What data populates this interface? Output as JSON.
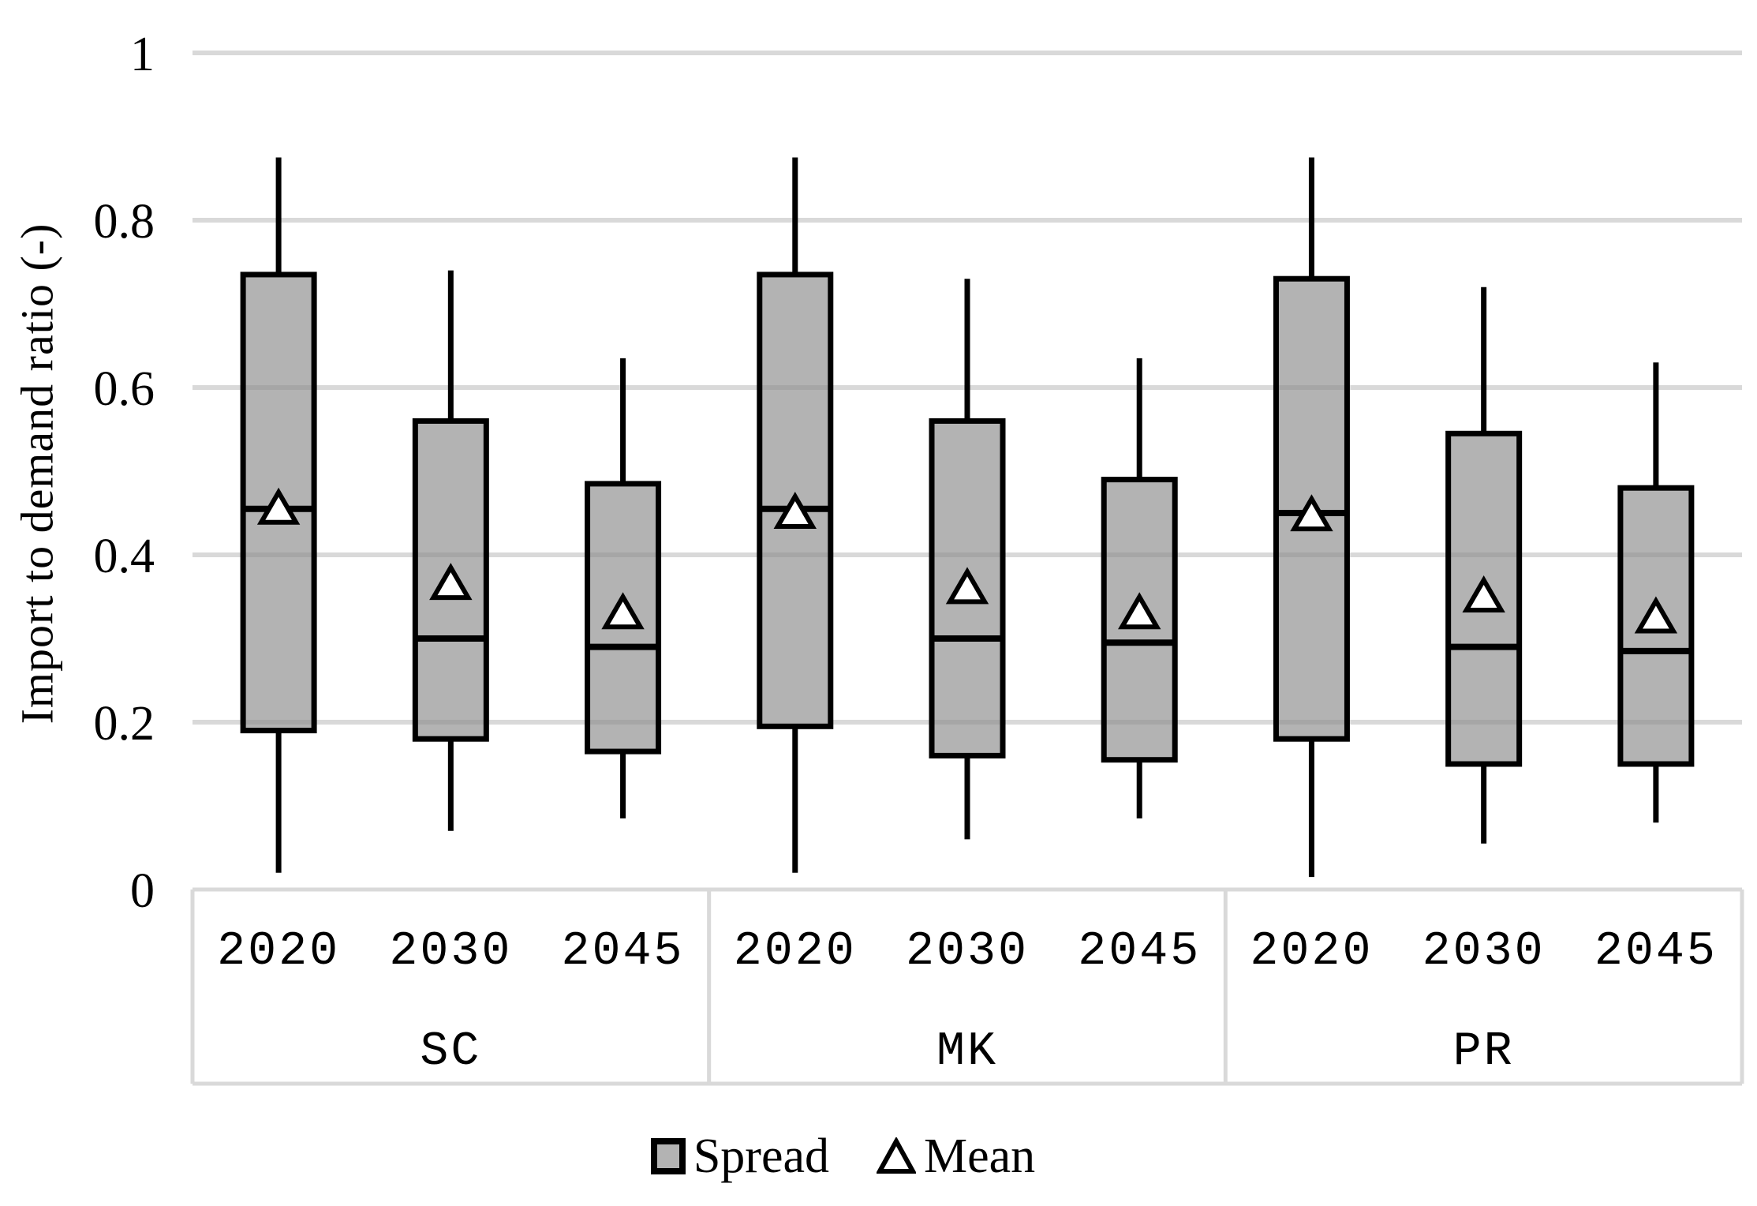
{
  "chart_data": {
    "type": "box",
    "title": "",
    "ylabel": "Import to demand ratio (-)",
    "xlabel": "",
    "ylim": [
      0,
      1
    ],
    "grid": true,
    "legend_position": "bottom",
    "y_axis_ticks": [
      {
        "value": 0,
        "label": "0"
      },
      {
        "value": 0.2,
        "label": "0.2"
      },
      {
        "value": 0.4,
        "label": "0.4"
      },
      {
        "value": 0.6,
        "label": "0.6"
      },
      {
        "value": 0.8,
        "label": "0.8"
      },
      {
        "value": 1,
        "label": "1"
      }
    ],
    "groups": [
      {
        "label": "SC",
        "boxes": [
          {
            "year": "2020",
            "min": 0.02,
            "q1": 0.19,
            "median": 0.455,
            "q3": 0.735,
            "max": 0.875,
            "mean": 0.455
          },
          {
            "year": "2030",
            "min": 0.07,
            "q1": 0.18,
            "median": 0.3,
            "q3": 0.56,
            "max": 0.74,
            "mean": 0.365
          },
          {
            "year": "2045",
            "min": 0.085,
            "q1": 0.165,
            "median": 0.29,
            "q3": 0.485,
            "max": 0.635,
            "mean": 0.33
          }
        ]
      },
      {
        "label": "MK",
        "boxes": [
          {
            "year": "2020",
            "min": 0.02,
            "q1": 0.195,
            "median": 0.455,
            "q3": 0.735,
            "max": 0.875,
            "mean": 0.45
          },
          {
            "year": "2030",
            "min": 0.06,
            "q1": 0.16,
            "median": 0.3,
            "q3": 0.56,
            "max": 0.73,
            "mean": 0.36
          },
          {
            "year": "2045",
            "min": 0.085,
            "q1": 0.155,
            "median": 0.295,
            "q3": 0.49,
            "max": 0.635,
            "mean": 0.33
          }
        ]
      },
      {
        "label": "PR",
        "boxes": [
          {
            "year": "2020",
            "min": 0.015,
            "q1": 0.18,
            "median": 0.45,
            "q3": 0.73,
            "max": 0.875,
            "mean": 0.447
          },
          {
            "year": "2030",
            "min": 0.055,
            "q1": 0.15,
            "median": 0.29,
            "q3": 0.545,
            "max": 0.72,
            "mean": 0.35
          },
          {
            "year": "2045",
            "min": 0.08,
            "q1": 0.15,
            "median": 0.285,
            "q3": 0.48,
            "max": 0.63,
            "mean": 0.325
          }
        ]
      }
    ],
    "legend_items": [
      {
        "symbol": "box",
        "label": "Spread"
      },
      {
        "symbol": "triangle",
        "label": "Mean"
      }
    ],
    "colors": {
      "box_fill": "#b3b3b3",
      "box_fill_gridline_tint": "#a6a6a6",
      "box_stroke": "#000000",
      "median": "#000000",
      "whisker": "#000000",
      "mean_marker_fill": "#ffffff",
      "mean_marker_stroke": "#000000",
      "gridline": "#d9d9d9",
      "axis_border": "#d9d9d9",
      "text": "#000000"
    }
  }
}
